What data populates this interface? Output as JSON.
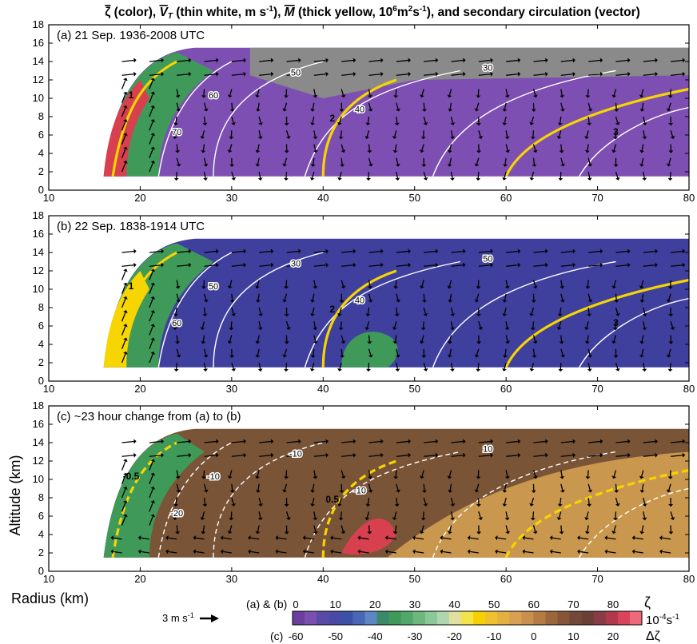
{
  "title_parts": {
    "zeta": "ζ",
    "p1": " (color), ",
    "vt": "V",
    "vt_sub": "T",
    "p2": " (thin white, m s",
    "p2_sup": "-1",
    "p3": "), ",
    "m": "M",
    "p4": " (thick yellow, 10",
    "p4_sup": "6",
    "p5": "m",
    "p5_sup": "2",
    "p6": "s",
    "p6_sup": "-1",
    "p7": "), and secondary circulation (vector)"
  },
  "colors": {
    "purple": "#7e4fb2",
    "blue": "#3f3f9e",
    "green": "#3f9a5a",
    "yellow": "#f6d500",
    "gray": "#8a8a8a",
    "brown": "#7a5437",
    "tan": "#c9984e",
    "red": "#d6404f"
  },
  "chart_data": [
    {
      "type": "heatmap",
      "panel_label": "(a) 21 Sep. 1936-2008 UTC",
      "xlim": [
        10,
        80
      ],
      "ylim": [
        0,
        18
      ],
      "x_ticks": [
        "10",
        "20",
        "30",
        "40",
        "50",
        "60",
        "70",
        "80"
      ],
      "y_ticks": [
        "0",
        "2",
        "4",
        "6",
        "8",
        "10",
        "12",
        "14",
        "16",
        "18"
      ],
      "contour_labels_white": [
        "60",
        "70",
        "50",
        "40",
        "30"
      ],
      "contour_labels_yellow": [
        "1",
        "2",
        "3"
      ]
    },
    {
      "type": "heatmap",
      "panel_label": "(b) 22 Sep. 1838-1914 UTC",
      "xlim": [
        10,
        80
      ],
      "ylim": [
        0,
        18
      ],
      "x_ticks": [
        "10",
        "20",
        "30",
        "40",
        "50",
        "60",
        "70",
        "80"
      ],
      "y_ticks": [
        "0",
        "2",
        "4",
        "6",
        "8",
        "10",
        "12",
        "14",
        "16",
        "18"
      ],
      "contour_labels_white": [
        "50",
        "60",
        "30",
        "40",
        "50"
      ],
      "contour_labels_yellow": [
        "1",
        "2",
        "3"
      ]
    },
    {
      "type": "heatmap",
      "panel_label": "(c) ~23 hour change from (a) to (b)",
      "xlim": [
        10,
        80
      ],
      "ylim": [
        0,
        18
      ],
      "x_ticks": [
        "10",
        "20",
        "30",
        "40",
        "50",
        "60",
        "70",
        "80"
      ],
      "y_ticks": [
        "0",
        "2",
        "4",
        "6",
        "8",
        "10",
        "12",
        "14",
        "16",
        "18"
      ],
      "contour_labels_white": [
        "-10",
        "-20",
        "-10",
        "-10",
        "10"
      ],
      "contour_labels_yellow": [
        "-0.5",
        "0.5"
      ]
    }
  ],
  "axes": {
    "ylabel": "Altitude (km)",
    "xlabel": "Radius (km)"
  },
  "colorbar": {
    "row_ab_label": "(a) & (b)",
    "row_ab_ticks": [
      "0",
      "10",
      "20",
      "30",
      "40",
      "50",
      "60",
      "70",
      "80"
    ],
    "row_c_label": "(c)",
    "row_c_ticks": [
      "-60",
      "-50",
      "-40",
      "-30",
      "-20",
      "-10",
      "0",
      "10",
      "20"
    ],
    "zeta_symbol": "ζ",
    "units": "10",
    "units_sup": "-4",
    "units_tail": "s",
    "units_tail_sup": "-1",
    "delta_zeta": "Δζ",
    "colors": [
      "#6b3fa0",
      "#7b4fb0",
      "#5a4aa8",
      "#4a4aa6",
      "#3d50a8",
      "#4a66b6",
      "#5c86c4",
      "#3a8a6a",
      "#3f9a5a",
      "#52a86a",
      "#6cb87c",
      "#8ac898",
      "#b0d6b0",
      "#e0e0a0",
      "#f4e44a",
      "#f6d000",
      "#f0c030",
      "#e4b040",
      "#d8a050",
      "#c98f4c",
      "#b57b44",
      "#9c663c",
      "#86553a",
      "#744838",
      "#6a4034",
      "#8a3c44",
      "#b03a4c",
      "#d8445a",
      "#ee6a7a"
    ]
  },
  "scale_vector": {
    "label": "3 m s",
    "sup": "-1"
  }
}
